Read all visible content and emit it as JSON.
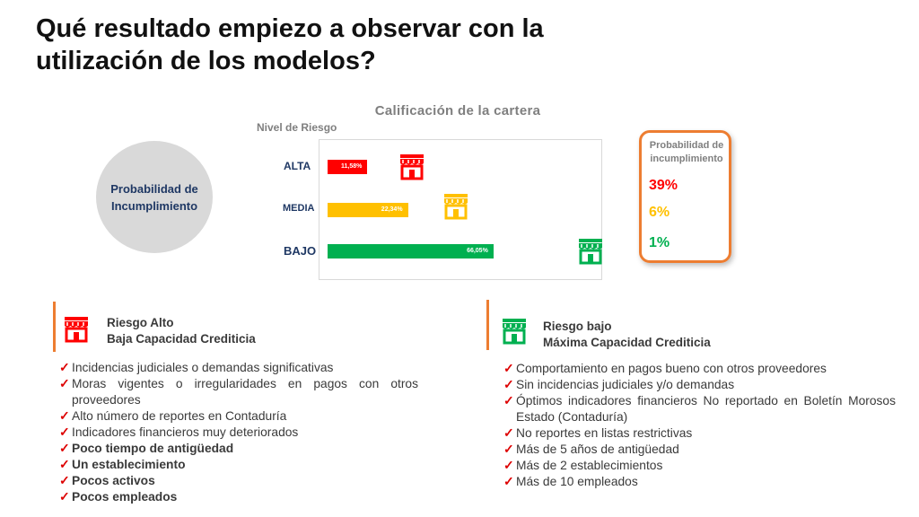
{
  "slide": {
    "title": "Qué resultado empiezo a observar con la utilización de los modelos?",
    "circle_label": "Probabilidad de Incumplimiento"
  },
  "chart_data": {
    "type": "bar",
    "orientation": "horizontal",
    "title": "Calificación de la cartera",
    "ylabel": "Nivel de Riesgo",
    "categories": [
      "ALTA",
      "MEDIA",
      "BAJO"
    ],
    "values": [
      11.58,
      22.34,
      66.05
    ],
    "value_labels": [
      "11,58%",
      "22,34%",
      "66,05%"
    ],
    "colors": [
      "#ff0000",
      "#ffc000",
      "#00b050"
    ],
    "xlim": [
      0,
      100
    ],
    "grid": false
  },
  "probability_box": {
    "heading": "Probabilidad de incumplimiento",
    "values": [
      {
        "text": "39%",
        "color": "#ff0000"
      },
      {
        "text": "6%",
        "color": "#ffc000"
      },
      {
        "text": "1%",
        "color": "#00b050"
      }
    ]
  },
  "risk_high": {
    "icon": "store-icon",
    "color": "#ff0000",
    "heading_line1": "Riesgo Alto",
    "heading_line2": "Baja Capacidad Crediticia",
    "items": [
      {
        "text": "Incidencias judiciales o demandas significativas",
        "bold": false
      },
      {
        "text": "Moras vigentes o irregularidades en pagos con otros proveedores",
        "bold": false
      },
      {
        "text": "Alto número de reportes en Contaduría",
        "bold": false
      },
      {
        "text": "Indicadores financieros muy deteriorados",
        "bold": false
      },
      {
        "text": "Poco tiempo de antigüedad",
        "bold": true
      },
      {
        "text": "Un establecimiento",
        "bold": true
      },
      {
        "text": "Pocos activos",
        "bold": true
      },
      {
        "text": "Pocos empleados",
        "bold": true
      }
    ]
  },
  "risk_low": {
    "icon": "store-icon",
    "color": "#00b050",
    "heading_line1": "Riesgo bajo",
    "heading_line2": "Máxima Capacidad Crediticia",
    "items": [
      {
        "text": "Comportamiento en pagos bueno con otros proveedores",
        "bold": false
      },
      {
        "text": "Sin incidencias judiciales y/o demandas",
        "bold": false
      },
      {
        "text": "Óptimos indicadores financieros No reportado en Boletín Morosos Estado (Contaduría)",
        "bold": false
      },
      {
        "text": "No reportes en listas restrictivas",
        "bold": false
      },
      {
        "text": "Más de 5 años de antigüedad",
        "bold": false
      },
      {
        "text": "Más de 2 establecimientos",
        "bold": false
      },
      {
        "text": "Más de 10 empleados",
        "bold": false
      }
    ]
  }
}
